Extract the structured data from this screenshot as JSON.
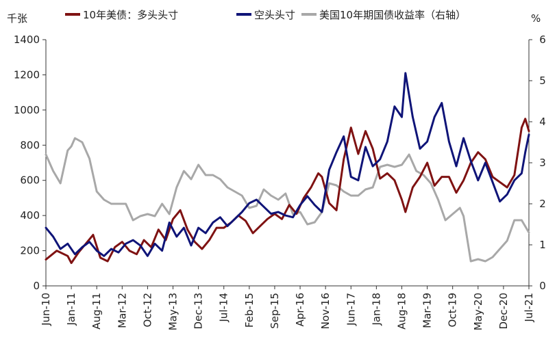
{
  "chart_data": {
    "type": "line",
    "title": "",
    "y_left_unit": "千张",
    "y_right_unit": "%",
    "y_left_range": [
      0,
      1400
    ],
    "y_left_ticks": [
      "0",
      "200",
      "400",
      "600",
      "800",
      "1000",
      "1200",
      "1400"
    ],
    "y_right_range": [
      0,
      6
    ],
    "y_right_ticks": [
      "0",
      "1",
      "2",
      "3",
      "4",
      "5",
      "6"
    ],
    "x_ticks": [
      "Jun-10",
      "Jan-11",
      "Aug-11",
      "Mar-12",
      "Oct-12",
      "May-13",
      "Dec-13",
      "Jul-14",
      "Feb-15",
      "Sep-15",
      "Apr-16",
      "Nov-16",
      "Jun-17",
      "Jan-18",
      "Aug-18",
      "Mar-19",
      "Oct-19",
      "May-20",
      "Dec-20",
      "Jul-21"
    ],
    "grid": false,
    "legend_position": "top",
    "series": [
      {
        "name": "10年美债：多头头寸",
        "axis": "left",
        "color": "#7f1212",
        "points": [
          [
            "2010-06",
            150
          ],
          [
            "2010-09",
            200
          ],
          [
            "2010-12",
            170
          ],
          [
            "2011-01",
            130
          ],
          [
            "2011-03",
            190
          ],
          [
            "2011-05",
            240
          ],
          [
            "2011-07",
            290
          ],
          [
            "2011-09",
            160
          ],
          [
            "2011-11",
            140
          ],
          [
            "2012-01",
            220
          ],
          [
            "2012-03",
            250
          ],
          [
            "2012-05",
            200
          ],
          [
            "2012-07",
            180
          ],
          [
            "2012-09",
            260
          ],
          [
            "2012-11",
            220
          ],
          [
            "2013-01",
            320
          ],
          [
            "2013-03",
            260
          ],
          [
            "2013-05",
            380
          ],
          [
            "2013-07",
            430
          ],
          [
            "2013-09",
            320
          ],
          [
            "2013-11",
            250
          ],
          [
            "2014-01",
            210
          ],
          [
            "2014-03",
            260
          ],
          [
            "2014-05",
            330
          ],
          [
            "2014-07",
            330
          ],
          [
            "2014-09",
            360
          ],
          [
            "2014-11",
            400
          ],
          [
            "2015-01",
            370
          ],
          [
            "2015-03",
            300
          ],
          [
            "2015-05",
            340
          ],
          [
            "2015-07",
            380
          ],
          [
            "2015-09",
            410
          ],
          [
            "2015-11",
            380
          ],
          [
            "2016-01",
            460
          ],
          [
            "2016-03",
            410
          ],
          [
            "2016-05",
            500
          ],
          [
            "2016-07",
            560
          ],
          [
            "2016-09",
            640
          ],
          [
            "2016-10",
            620
          ],
          [
            "2016-12",
            470
          ],
          [
            "2017-02",
            430
          ],
          [
            "2017-04",
            720
          ],
          [
            "2017-06",
            900
          ],
          [
            "2017-08",
            750
          ],
          [
            "2017-10",
            880
          ],
          [
            "2017-12",
            780
          ],
          [
            "2018-02",
            610
          ],
          [
            "2018-04",
            640
          ],
          [
            "2018-06",
            600
          ],
          [
            "2018-08",
            490
          ],
          [
            "2018-09",
            420
          ],
          [
            "2018-11",
            560
          ],
          [
            "2019-01",
            620
          ],
          [
            "2019-03",
            700
          ],
          [
            "2019-05",
            570
          ],
          [
            "2019-07",
            620
          ],
          [
            "2019-09",
            620
          ],
          [
            "2019-11",
            530
          ],
          [
            "2020-01",
            600
          ],
          [
            "2020-03",
            700
          ],
          [
            "2020-05",
            760
          ],
          [
            "2020-07",
            720
          ],
          [
            "2020-09",
            620
          ],
          [
            "2020-11",
            590
          ],
          [
            "2021-01",
            560
          ],
          [
            "2021-03",
            630
          ],
          [
            "2021-05",
            900
          ],
          [
            "2021-06",
            950
          ],
          [
            "2021-07",
            880
          ]
        ]
      },
      {
        "name": "空头头寸",
        "axis": "left",
        "color": "#0f1478",
        "points": [
          [
            "2010-06",
            330
          ],
          [
            "2010-08",
            280
          ],
          [
            "2010-10",
            210
          ],
          [
            "2010-12",
            240
          ],
          [
            "2011-02",
            180
          ],
          [
            "2011-04",
            220
          ],
          [
            "2011-06",
            250
          ],
          [
            "2011-08",
            200
          ],
          [
            "2011-10",
            170
          ],
          [
            "2011-12",
            210
          ],
          [
            "2012-02",
            190
          ],
          [
            "2012-04",
            240
          ],
          [
            "2012-06",
            260
          ],
          [
            "2012-08",
            230
          ],
          [
            "2012-10",
            170
          ],
          [
            "2012-12",
            240
          ],
          [
            "2013-02",
            200
          ],
          [
            "2013-04",
            360
          ],
          [
            "2013-06",
            280
          ],
          [
            "2013-08",
            330
          ],
          [
            "2013-10",
            230
          ],
          [
            "2013-12",
            330
          ],
          [
            "2014-02",
            300
          ],
          [
            "2014-04",
            360
          ],
          [
            "2014-06",
            390
          ],
          [
            "2014-08",
            340
          ],
          [
            "2014-10",
            380
          ],
          [
            "2014-12",
            420
          ],
          [
            "2015-02",
            470
          ],
          [
            "2015-04",
            490
          ],
          [
            "2015-06",
            450
          ],
          [
            "2015-08",
            410
          ],
          [
            "2015-10",
            420
          ],
          [
            "2015-12",
            400
          ],
          [
            "2016-02",
            390
          ],
          [
            "2016-04",
            460
          ],
          [
            "2016-06",
            510
          ],
          [
            "2016-08",
            460
          ],
          [
            "2016-10",
            420
          ],
          [
            "2016-12",
            660
          ],
          [
            "2017-02",
            760
          ],
          [
            "2017-04",
            850
          ],
          [
            "2017-06",
            620
          ],
          [
            "2017-08",
            600
          ],
          [
            "2017-10",
            790
          ],
          [
            "2017-12",
            680
          ],
          [
            "2018-02",
            720
          ],
          [
            "2018-04",
            820
          ],
          [
            "2018-06",
            1020
          ],
          [
            "2018-08",
            960
          ],
          [
            "2018-09",
            1210
          ],
          [
            "2018-11",
            960
          ],
          [
            "2019-01",
            780
          ],
          [
            "2019-03",
            820
          ],
          [
            "2019-05",
            960
          ],
          [
            "2019-07",
            1040
          ],
          [
            "2019-09",
            820
          ],
          [
            "2019-11",
            680
          ],
          [
            "2020-01",
            840
          ],
          [
            "2020-03",
            710
          ],
          [
            "2020-05",
            600
          ],
          [
            "2020-07",
            700
          ],
          [
            "2020-09",
            590
          ],
          [
            "2020-11",
            480
          ],
          [
            "2021-01",
            520
          ],
          [
            "2021-03",
            600
          ],
          [
            "2021-05",
            640
          ],
          [
            "2021-06",
            760
          ],
          [
            "2021-07",
            860
          ]
        ]
      },
      {
        "name": "美国10年期国债收益率（右轴）",
        "axis": "right",
        "color": "#a8a8a8",
        "points": [
          [
            "2010-06",
            3.2
          ],
          [
            "2010-08",
            2.8
          ],
          [
            "2010-10",
            2.5
          ],
          [
            "2010-12",
            3.3
          ],
          [
            "2011-01",
            3.4
          ],
          [
            "2011-02",
            3.6
          ],
          [
            "2011-04",
            3.5
          ],
          [
            "2011-06",
            3.1
          ],
          [
            "2011-08",
            2.3
          ],
          [
            "2011-10",
            2.1
          ],
          [
            "2011-12",
            2.0
          ],
          [
            "2012-02",
            2.0
          ],
          [
            "2012-04",
            2.0
          ],
          [
            "2012-06",
            1.6
          ],
          [
            "2012-08",
            1.7
          ],
          [
            "2012-10",
            1.75
          ],
          [
            "2012-12",
            1.7
          ],
          [
            "2013-02",
            2.0
          ],
          [
            "2013-04",
            1.75
          ],
          [
            "2013-06",
            2.4
          ],
          [
            "2013-08",
            2.8
          ],
          [
            "2013-10",
            2.6
          ],
          [
            "2013-12",
            2.95
          ],
          [
            "2014-02",
            2.7
          ],
          [
            "2014-04",
            2.7
          ],
          [
            "2014-06",
            2.6
          ],
          [
            "2014-08",
            2.4
          ],
          [
            "2014-10",
            2.3
          ],
          [
            "2014-12",
            2.2
          ],
          [
            "2015-02",
            1.9
          ],
          [
            "2015-04",
            1.95
          ],
          [
            "2015-06",
            2.35
          ],
          [
            "2015-08",
            2.2
          ],
          [
            "2015-10",
            2.1
          ],
          [
            "2015-12",
            2.25
          ],
          [
            "2016-02",
            1.75
          ],
          [
            "2016-04",
            1.8
          ],
          [
            "2016-06",
            1.5
          ],
          [
            "2016-08",
            1.55
          ],
          [
            "2016-10",
            1.8
          ],
          [
            "2016-12",
            2.5
          ],
          [
            "2017-02",
            2.45
          ],
          [
            "2017-04",
            2.3
          ],
          [
            "2017-06",
            2.2
          ],
          [
            "2017-08",
            2.2
          ],
          [
            "2017-10",
            2.35
          ],
          [
            "2017-12",
            2.4
          ],
          [
            "2018-02",
            2.9
          ],
          [
            "2018-04",
            2.95
          ],
          [
            "2018-06",
            2.9
          ],
          [
            "2018-08",
            2.95
          ],
          [
            "2018-10",
            3.2
          ],
          [
            "2018-12",
            2.8
          ],
          [
            "2019-02",
            2.7
          ],
          [
            "2019-04",
            2.5
          ],
          [
            "2019-06",
            2.1
          ],
          [
            "2019-08",
            1.6
          ],
          [
            "2019-10",
            1.75
          ],
          [
            "2019-12",
            1.9
          ],
          [
            "2020-01",
            1.7
          ],
          [
            "2020-03",
            0.6
          ],
          [
            "2020-05",
            0.65
          ],
          [
            "2020-07",
            0.6
          ],
          [
            "2020-09",
            0.7
          ],
          [
            "2020-11",
            0.9
          ],
          [
            "2021-01",
            1.1
          ],
          [
            "2021-03",
            1.6
          ],
          [
            "2021-05",
            1.6
          ],
          [
            "2021-07",
            1.3
          ]
        ]
      }
    ]
  }
}
